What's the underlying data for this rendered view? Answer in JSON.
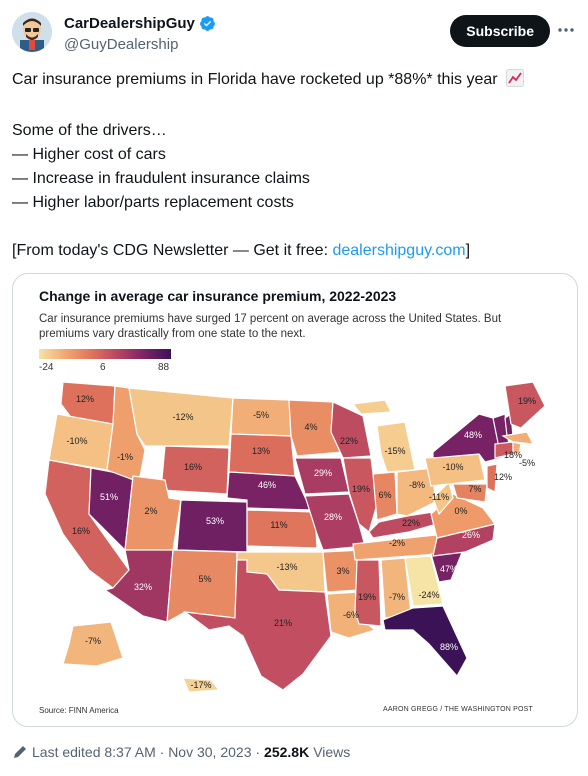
{
  "author": {
    "name": "CarDealershipGuy",
    "handle": "@GuyDealership",
    "avatar_icon": "avatar-cartoon",
    "verified_color": "#1d9bf0"
  },
  "header": {
    "subscribe_label": "Subscribe"
  },
  "tweet": {
    "line1": "Car insurance premiums in Florida have rocketed up *88%* this year",
    "drivers_intro": "Some of the drivers…",
    "driver_1": "— Higher cost of cars",
    "driver_2": "— Increase in fraudulent insurance claims",
    "driver_3": "— Higher labor/parts replacement costs",
    "newsletter_prefix": "[From today's CDG Newsletter — Get it free: ",
    "newsletter_link": "dealershipguy.com",
    "newsletter_suffix": "]"
  },
  "chart_data": {
    "type": "choropleth",
    "title": "Change in average car insurance premium, 2022-2023",
    "subtitle": "Car insurance premiums have surged 17 percent on average across the United States. But premiums vary drastically from one state to the next.",
    "legend": {
      "min": "-24",
      "mid": "6",
      "max": "88"
    },
    "unit": "%",
    "states": [
      {
        "state": "WA",
        "value": 12
      },
      {
        "state": "OR",
        "value": -10
      },
      {
        "state": "CA",
        "value": 16
      },
      {
        "state": "NV",
        "value": 51
      },
      {
        "state": "ID",
        "value": -1
      },
      {
        "state": "MT",
        "value": -12
      },
      {
        "state": "WY",
        "value": 16
      },
      {
        "state": "UT",
        "value": 2
      },
      {
        "state": "AZ",
        "value": 32
      },
      {
        "state": "CO",
        "value": 53
      },
      {
        "state": "NM",
        "value": 5
      },
      {
        "state": "ND",
        "value": -5
      },
      {
        "state": "SD",
        "value": 13
      },
      {
        "state": "NE",
        "value": 46
      },
      {
        "state": "KS",
        "value": 11
      },
      {
        "state": "OK",
        "value": -13
      },
      {
        "state": "TX",
        "value": 21
      },
      {
        "state": "MN",
        "value": 4
      },
      {
        "state": "IA",
        "value": 29
      },
      {
        "state": "MO",
        "value": 28
      },
      {
        "state": "AR",
        "value": 3
      },
      {
        "state": "LA",
        "value": -6
      },
      {
        "state": "WI",
        "value": 22
      },
      {
        "state": "IL",
        "value": 19
      },
      {
        "state": "MI",
        "value": -15
      },
      {
        "state": "IN",
        "value": 6
      },
      {
        "state": "OH",
        "value": -8
      },
      {
        "state": "KY",
        "value": 22
      },
      {
        "state": "TN",
        "value": -2
      },
      {
        "state": "MS",
        "value": 19
      },
      {
        "state": "AL",
        "value": -7
      },
      {
        "state": "GA",
        "value": -24
      },
      {
        "state": "FL",
        "value": 88
      },
      {
        "state": "SC",
        "value": 47
      },
      {
        "state": "NC",
        "value": 26
      },
      {
        "state": "VA",
        "value": 0
      },
      {
        "state": "WV",
        "value": -11
      },
      {
        "state": "PA",
        "value": -10
      },
      {
        "state": "NY",
        "value": 48
      },
      {
        "state": "NJ",
        "value": 12
      },
      {
        "state": "MD",
        "value": 7
      },
      {
        "state": "CT",
        "value": 18
      },
      {
        "state": "RI",
        "value": -5
      },
      {
        "state": "ME",
        "value": 19
      },
      {
        "state": "AK",
        "value": -7
      },
      {
        "state": "HI",
        "value": -17
      }
    ],
    "source": "Source: FINN America",
    "credit": "AARON GREGG / THE WASHINGTON POST"
  },
  "footer": {
    "edited": "Last edited 8:37 AM · Nov 30, 2023 · ",
    "views_count": "252.8K",
    "views_label": " Views"
  }
}
